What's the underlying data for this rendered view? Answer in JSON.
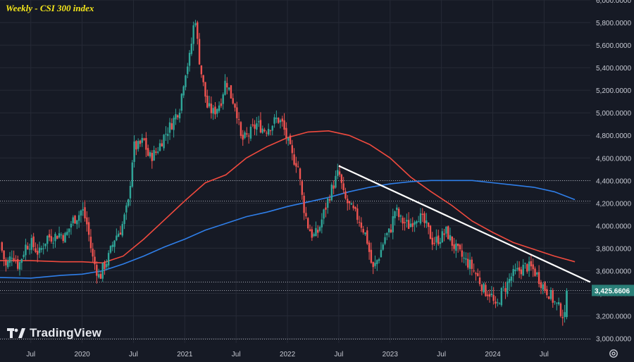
{
  "title": "Weekly - CSI 300 index",
  "brand": "TradingView",
  "colors": {
    "background": "#161a25",
    "grid": "#262a36",
    "axis_text": "#c7cad3",
    "up": "#2fa598",
    "down": "#ef5350",
    "ma_red": "#f04a3e",
    "ma_blue": "#2f7ee8",
    "trendline": "#ffffff",
    "dotted": "#b9bcc6",
    "price_tag_bg": "#2a7f78"
  },
  "icons": {
    "settings": "gear-icon",
    "logo": "tradingview-logo-icon"
  },
  "chart_data": {
    "type": "candlestick",
    "title": "Weekly - CSI 300 index",
    "x_axis_labels": [
      "Jul",
      "2020",
      "Jul",
      "2021",
      "Jul",
      "2022",
      "Jul",
      "2023",
      "Jul",
      "2024",
      "Jul"
    ],
    "x_tick_times": [
      2019.5,
      2020.0,
      2020.5,
      2021.0,
      2021.5,
      2022.0,
      2022.5,
      2023.0,
      2023.5,
      2024.0,
      2024.5
    ],
    "x_range": [
      2019.2,
      2024.95
    ],
    "y_ticks": [
      "3,000.0000",
      "3,200.0000",
      "3,400.0000",
      "3,600.0000",
      "3,800.0000",
      "4,000.0000",
      "4,200.0000",
      "4,400.0000",
      "4,600.0000",
      "4,800.0000",
      "5,000.0000",
      "5,200.0000",
      "5,400.0000",
      "5,600.0000",
      "5,800.0000",
      "6,000.0000"
    ],
    "y_range": [
      2960,
      6000
    ],
    "last_price_label": "3,425.6606",
    "last_price": 3425.66,
    "horizontal_levels": [
      4400,
      4220,
      3500,
      3425.66,
      3000
    ],
    "trendline": {
      "from": [
        2022.5,
        4530
      ],
      "to": [
        2024.95,
        3500
      ]
    },
    "series": [
      {
        "kind": "close_path",
        "points": [
          [
            2019.2,
            3850
          ],
          [
            2019.26,
            3630
          ],
          [
            2019.32,
            3760
          ],
          [
            2019.38,
            3640
          ],
          [
            2019.45,
            3820
          ],
          [
            2019.5,
            3850
          ],
          [
            2019.58,
            3750
          ],
          [
            2019.66,
            3900
          ],
          [
            2019.72,
            3900
          ],
          [
            2019.78,
            3930
          ],
          [
            2019.84,
            3900
          ],
          [
            2019.9,
            4040
          ],
          [
            2019.97,
            4100
          ],
          [
            2020.0,
            4150
          ],
          [
            2020.05,
            4000
          ],
          [
            2020.1,
            3720
          ],
          [
            2020.17,
            3530
          ],
          [
            2020.2,
            3620
          ],
          [
            2020.25,
            3700
          ],
          [
            2020.32,
            3900
          ],
          [
            2020.38,
            3970
          ],
          [
            2020.45,
            4200
          ],
          [
            2020.5,
            4700
          ],
          [
            2020.55,
            4700
          ],
          [
            2020.6,
            4760
          ],
          [
            2020.65,
            4600
          ],
          [
            2020.72,
            4650
          ],
          [
            2020.8,
            4800
          ],
          [
            2020.87,
            4900
          ],
          [
            2020.95,
            5050
          ],
          [
            2021.0,
            5350
          ],
          [
            2021.05,
            5500
          ],
          [
            2021.1,
            5880
          ],
          [
            2021.13,
            5550
          ],
          [
            2021.17,
            5300
          ],
          [
            2021.22,
            5050
          ],
          [
            2021.28,
            5000
          ],
          [
            2021.35,
            5100
          ],
          [
            2021.4,
            5300
          ],
          [
            2021.45,
            5150
          ],
          [
            2021.5,
            5050
          ],
          [
            2021.55,
            4750
          ],
          [
            2021.62,
            4800
          ],
          [
            2021.7,
            4900
          ],
          [
            2021.78,
            4850
          ],
          [
            2021.85,
            4900
          ],
          [
            2021.9,
            4950
          ],
          [
            2021.95,
            4900
          ],
          [
            2022.0,
            4750
          ],
          [
            2022.05,
            4600
          ],
          [
            2022.1,
            4550
          ],
          [
            2022.15,
            4200
          ],
          [
            2022.2,
            4000
          ],
          [
            2022.25,
            3900
          ],
          [
            2022.3,
            3950
          ],
          [
            2022.35,
            4100
          ],
          [
            2022.42,
            4300
          ],
          [
            2022.5,
            4480
          ],
          [
            2022.55,
            4250
          ],
          [
            2022.62,
            4150
          ],
          [
            2022.7,
            4050
          ],
          [
            2022.77,
            3900
          ],
          [
            2022.83,
            3600
          ],
          [
            2022.9,
            3750
          ],
          [
            2022.95,
            3900
          ],
          [
            2023.0,
            3950
          ],
          [
            2023.05,
            4150
          ],
          [
            2023.1,
            4050
          ],
          [
            2023.18,
            4000
          ],
          [
            2023.27,
            4100
          ],
          [
            2023.35,
            4000
          ],
          [
            2023.42,
            3850
          ],
          [
            2023.5,
            3900
          ],
          [
            2023.55,
            3950
          ],
          [
            2023.6,
            3850
          ],
          [
            2023.65,
            3780
          ],
          [
            2023.72,
            3700
          ],
          [
            2023.78,
            3650
          ],
          [
            2023.85,
            3550
          ],
          [
            2023.92,
            3420
          ],
          [
            2023.98,
            3400
          ],
          [
            2024.03,
            3250
          ],
          [
            2024.08,
            3400
          ],
          [
            2024.12,
            3450
          ],
          [
            2024.18,
            3550
          ],
          [
            2024.25,
            3600
          ],
          [
            2024.32,
            3640
          ],
          [
            2024.38,
            3620
          ],
          [
            2024.42,
            3580
          ],
          [
            2024.5,
            3450
          ],
          [
            2024.55,
            3400
          ],
          [
            2024.6,
            3320
          ],
          [
            2024.66,
            3250
          ],
          [
            2024.7,
            3180
          ],
          [
            2024.72,
            3425.66
          ]
        ]
      },
      {
        "name": "",
        "kind": "moving_average",
        "color_key": "ma_red",
        "points": [
          [
            2019.2,
            3690
          ],
          [
            2019.5,
            3690
          ],
          [
            2019.8,
            3680
          ],
          [
            2020.0,
            3680
          ],
          [
            2020.2,
            3670
          ],
          [
            2020.4,
            3730
          ],
          [
            2020.6,
            3880
          ],
          [
            2020.8,
            4050
          ],
          [
            2021.0,
            4220
          ],
          [
            2021.2,
            4380
          ],
          [
            2021.4,
            4450
          ],
          [
            2021.6,
            4600
          ],
          [
            2021.8,
            4700
          ],
          [
            2022.0,
            4780
          ],
          [
            2022.2,
            4830
          ],
          [
            2022.4,
            4840
          ],
          [
            2022.6,
            4800
          ],
          [
            2022.8,
            4720
          ],
          [
            2023.0,
            4600
          ],
          [
            2023.2,
            4430
          ],
          [
            2023.4,
            4300
          ],
          [
            2023.6,
            4180
          ],
          [
            2023.8,
            4040
          ],
          [
            2024.0,
            3940
          ],
          [
            2024.2,
            3850
          ],
          [
            2024.4,
            3790
          ],
          [
            2024.6,
            3730
          ],
          [
            2024.8,
            3680
          ]
        ]
      },
      {
        "name": "",
        "kind": "moving_average",
        "color_key": "ma_blue",
        "points": [
          [
            2019.2,
            3540
          ],
          [
            2019.5,
            3535
          ],
          [
            2019.8,
            3560
          ],
          [
            2020.0,
            3570
          ],
          [
            2020.2,
            3600
          ],
          [
            2020.4,
            3660
          ],
          [
            2020.6,
            3730
          ],
          [
            2020.8,
            3810
          ],
          [
            2021.0,
            3880
          ],
          [
            2021.2,
            3960
          ],
          [
            2021.4,
            4020
          ],
          [
            2021.6,
            4080
          ],
          [
            2021.8,
            4120
          ],
          [
            2022.0,
            4170
          ],
          [
            2022.2,
            4210
          ],
          [
            2022.4,
            4250
          ],
          [
            2022.6,
            4300
          ],
          [
            2022.8,
            4340
          ],
          [
            2023.0,
            4370
          ],
          [
            2023.2,
            4390
          ],
          [
            2023.4,
            4400
          ],
          [
            2023.6,
            4400
          ],
          [
            2023.8,
            4400
          ],
          [
            2024.0,
            4380
          ],
          [
            2024.2,
            4360
          ],
          [
            2024.4,
            4340
          ],
          [
            2024.6,
            4300
          ],
          [
            2024.8,
            4230
          ]
        ]
      }
    ]
  }
}
